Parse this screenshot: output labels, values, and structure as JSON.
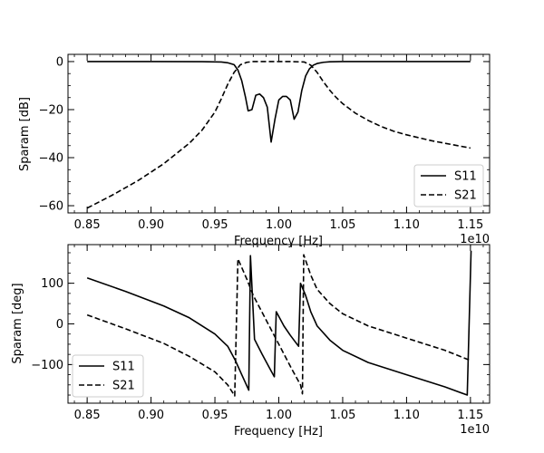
{
  "chart_data": [
    {
      "type": "line",
      "xlabel": "Frequency [Hz]",
      "ylabel": "Sparam [dB]",
      "x_offset_text": "1e10",
      "xlim": [
        0.835,
        1.165
      ],
      "ylim": [
        -63,
        3
      ],
      "xticks": [
        0.85,
        0.9,
        0.95,
        1.0,
        1.05,
        1.1,
        1.15
      ],
      "xtick_labels": [
        "0.85",
        "0.90",
        "0.95",
        "1.00",
        "1.05",
        "1.10",
        "1.15"
      ],
      "yticks": [
        0,
        -20,
        -40,
        -60
      ],
      "ytick_labels": [
        "0",
        "−20",
        "−40",
        "−60"
      ],
      "legend": {
        "placement": "lower-right",
        "entries": [
          "S11",
          "S21"
        ]
      },
      "series": [
        {
          "name": "S11",
          "style": "solid",
          "color": "#000000",
          "x": [
            0.85,
            0.9,
            0.94,
            0.955,
            0.96,
            0.965,
            0.968,
            0.971,
            0.974,
            0.976,
            0.979,
            0.982,
            0.985,
            0.988,
            0.991,
            0.994,
            0.997,
            1.0,
            1.003,
            1.006,
            1.009,
            1.012,
            1.015,
            1.018,
            1.021,
            1.024,
            1.027,
            1.03,
            1.035,
            1.04,
            1.05,
            1.1,
            1.15
          ],
          "y": [
            0,
            0,
            -0.05,
            -0.2,
            -0.5,
            -1.3,
            -3.5,
            -8,
            -15,
            -20.5,
            -20,
            -14,
            -13.5,
            -15,
            -19,
            -33.5,
            -24,
            -16,
            -14.5,
            -14.5,
            -16,
            -24,
            -21,
            -12,
            -6,
            -3,
            -1.5,
            -0.8,
            -0.3,
            -0.1,
            0,
            0,
            0
          ]
        },
        {
          "name": "S21",
          "style": "dashed",
          "color": "#000000",
          "x": [
            0.85,
            0.87,
            0.89,
            0.91,
            0.93,
            0.94,
            0.95,
            0.955,
            0.96,
            0.965,
            0.97,
            0.975,
            0.98,
            0.99,
            1.0,
            1.01,
            1.02,
            1.025,
            1.03,
            1.035,
            1.04,
            1.045,
            1.05,
            1.06,
            1.07,
            1.08,
            1.09,
            1.1,
            1.12,
            1.15
          ],
          "y": [
            -61,
            -55.5,
            -49.5,
            -42.5,
            -34,
            -28.5,
            -21,
            -15.5,
            -9.5,
            -4.5,
            -1.3,
            -0.3,
            0,
            0,
            0,
            0,
            -0.2,
            -1.5,
            -4.5,
            -8.5,
            -12,
            -15,
            -17.5,
            -21.5,
            -24.5,
            -27,
            -29,
            -30.5,
            -33,
            -36
          ]
        }
      ]
    },
    {
      "type": "line",
      "xlabel": "Frequency [Hz]",
      "ylabel": "Sparam [deg]",
      "x_offset_text": "1e10",
      "xlim": [
        0.835,
        1.165
      ],
      "ylim": [
        -195,
        195
      ],
      "xticks": [
        0.85,
        0.9,
        0.95,
        1.0,
        1.05,
        1.1,
        1.15
      ],
      "xtick_labels": [
        "0.85",
        "0.90",
        "0.95",
        "1.00",
        "1.05",
        "1.10",
        "1.15"
      ],
      "yticks": [
        100,
        0,
        -100
      ],
      "ytick_labels": [
        "100",
        "0",
        "−100"
      ],
      "legend": {
        "placement": "lower-left",
        "entries": [
          "S11",
          "S21"
        ]
      },
      "series": [
        {
          "name": "S11",
          "style": "solid",
          "color": "#000000",
          "x": [
            0.85,
            0.88,
            0.91,
            0.93,
            0.95,
            0.96,
            0.966,
            0.971,
            0.9765,
            0.9778,
            0.981,
            0.987,
            0.993,
            0.9965,
            0.998,
            1.004,
            1.009,
            1.0155,
            1.017,
            1.021,
            1.025,
            1.03,
            1.04,
            1.05,
            1.07,
            1.1,
            1.13,
            1.1475,
            1.1505
          ],
          "y": [
            113,
            80,
            44,
            15,
            -25,
            -55,
            -90,
            -125,
            -163,
            168,
            -38,
            -75,
            -110,
            -130,
            30,
            -5,
            -28,
            -55,
            100,
            70,
            30,
            -5,
            -40,
            -65,
            -95,
            -125,
            -155,
            -175,
            180
          ]
        },
        {
          "name": "S21",
          "style": "dashed",
          "color": "#000000",
          "x": [
            0.85,
            0.88,
            0.91,
            0.93,
            0.95,
            0.96,
            0.9655,
            0.968,
            0.975,
            0.98,
            0.99,
            1.0,
            1.01,
            1.017,
            1.0185,
            1.0195,
            1.025,
            1.03,
            1.04,
            1.05,
            1.07,
            1.1,
            1.13,
            1.15
          ],
          "y": [
            22,
            -12,
            -48,
            -80,
            -118,
            -150,
            -177,
            160,
            110,
            70,
            10,
            -50,
            -110,
            -150,
            -172,
            170,
            120,
            85,
            50,
            25,
            -5,
            -35,
            -65,
            -90
          ]
        }
      ]
    }
  ]
}
